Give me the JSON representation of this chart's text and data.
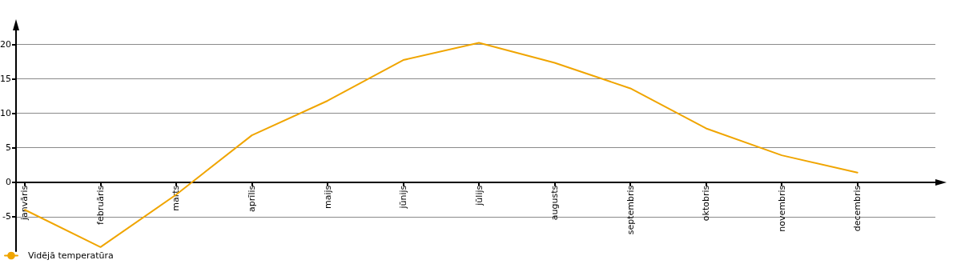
{
  "chart_data": {
    "type": "line",
    "categories": [
      "janvāris",
      "februāris",
      "marts",
      "aprīlis",
      "maijs",
      "jūnijs",
      "jūlijs",
      "augusts",
      "septembris",
      "oktobris",
      "novembris",
      "decembris"
    ],
    "series": [
      {
        "name": "Vidējā temperatūra",
        "color": "#f0a500",
        "values": [
          -4.0,
          -9.4,
          -1.8,
          6.8,
          11.8,
          17.7,
          20.2,
          17.3,
          13.6,
          7.8,
          3.9,
          1.4
        ]
      }
    ],
    "ylim": [
      -10,
      22
    ],
    "yticks": [
      -5,
      0,
      5,
      10,
      15,
      20
    ],
    "grid": "y",
    "legend": "bottom left",
    "marker": "none",
    "line_style": "solid"
  }
}
